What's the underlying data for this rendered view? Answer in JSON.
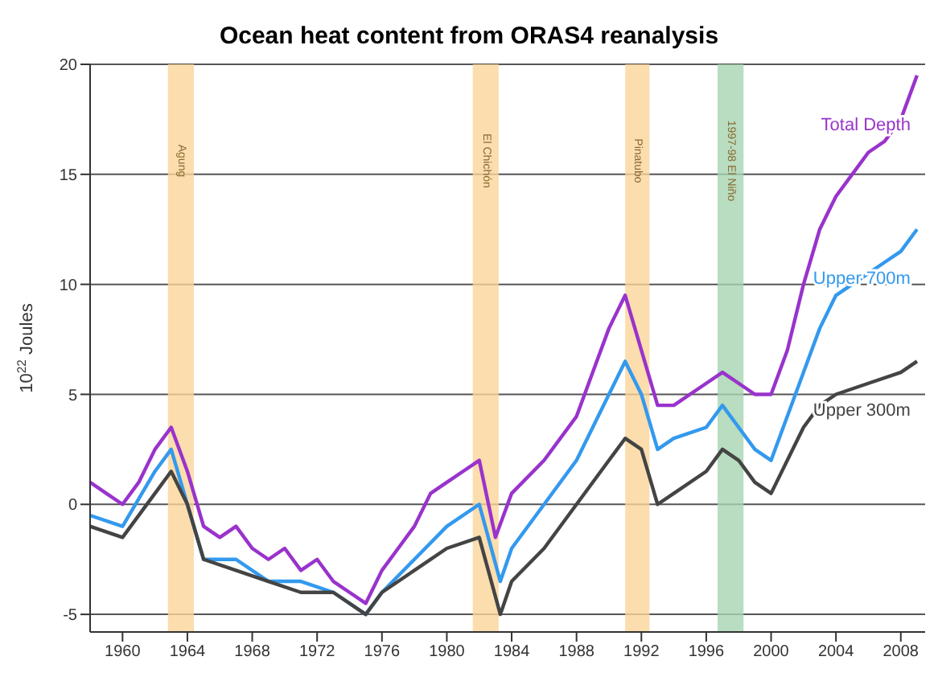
{
  "chart_data": {
    "type": "line",
    "title": "Ocean heat content from ORAS4 reanalysis",
    "ylabel": "10$^{22}$ Joules",
    "xlim": [
      1958,
      2009.5
    ],
    "xticks": [
      1960,
      1964,
      1968,
      1972,
      1976,
      1980,
      1984,
      1988,
      1992,
      1996,
      2000,
      2004,
      2008
    ],
    "ylim": [
      -5.8,
      20
    ],
    "yticks": [
      -5,
      0,
      5,
      10,
      15,
      20
    ],
    "grid": "y",
    "legend": false,
    "marker": "none",
    "line_style": "solid",
    "series": [
      {
        "name": "Total Depth",
        "color": "#9933cc",
        "x": [
          1958,
          1959,
          1960,
          1961,
          1962,
          1963,
          1964,
          1965,
          1966,
          1967,
          1968,
          1969,
          1970,
          1971,
          1972,
          1973,
          1974,
          1975,
          1976,
          1977,
          1978,
          1979,
          1980,
          1981,
          1982,
          1983,
          1984,
          1986,
          1988,
          1989,
          1990,
          1991,
          1992,
          1993,
          1994,
          1996,
          1997,
          1998,
          1999,
          2000,
          2001,
          2002,
          2003,
          2004,
          2005,
          2006,
          2007,
          2008,
          2009
        ],
        "values": [
          1,
          0.5,
          0,
          1,
          2.5,
          3.5,
          1.5,
          -1,
          -1.5,
          -1,
          -2,
          -2.5,
          -2,
          -3,
          -2.5,
          -3.5,
          -4,
          -4.5,
          -3,
          -2,
          -1,
          0.5,
          1,
          1.5,
          2,
          -1.5,
          0.5,
          2,
          4,
          6,
          8,
          9.5,
          7,
          4.5,
          4.5,
          5.5,
          6,
          5.5,
          5,
          5,
          7,
          10,
          12.5,
          14,
          15,
          16,
          16.5,
          17.5,
          19.5
        ]
      },
      {
        "name": "Upper 700m",
        "color": "#3399ee",
        "x": [
          1958,
          1960,
          1962,
          1963,
          1964,
          1965,
          1967,
          1969,
          1971,
          1973,
          1975,
          1976,
          1978,
          1980,
          1982,
          1983.3,
          1984,
          1986,
          1988,
          1990,
          1991,
          1992,
          1993,
          1994,
          1996,
          1997,
          1998,
          1999,
          2000,
          2001,
          2002,
          2003,
          2004,
          2005,
          2006,
          2007,
          2008,
          2009
        ],
        "values": [
          -0.5,
          -1,
          1.5,
          2.5,
          0,
          -2.5,
          -2.5,
          -3.5,
          -3.5,
          -4,
          -5,
          -4,
          -2.5,
          -1,
          0,
          -3.5,
          -2,
          0,
          2,
          5,
          6.5,
          5,
          2.5,
          3,
          3.5,
          4.5,
          3.5,
          2.5,
          2,
          4,
          6,
          8,
          9.5,
          10,
          10.5,
          11,
          11.5,
          12.5
        ]
      },
      {
        "name": "Upper 300m",
        "color": "#444444",
        "x": [
          1958,
          1960,
          1962,
          1963,
          1964,
          1965,
          1967,
          1969,
          1971,
          1973,
          1975,
          1976,
          1978,
          1980,
          1982,
          1983.3,
          1984,
          1986,
          1988,
          1990,
          1991,
          1992,
          1993,
          1994,
          1996,
          1997,
          1998,
          1999,
          2000,
          2001,
          2002,
          2003,
          2004,
          2006,
          2008,
          2009
        ],
        "values": [
          -1,
          -1.5,
          0.5,
          1.5,
          0,
          -2.5,
          -3,
          -3.5,
          -4,
          -4,
          -5,
          -4,
          -3,
          -2,
          -1.5,
          -5,
          -3.5,
          -2,
          0,
          2,
          3,
          2.5,
          0,
          0.5,
          1.5,
          2.5,
          2,
          1,
          0.5,
          2,
          3.5,
          4.5,
          5,
          5.5,
          6,
          6.5
        ]
      }
    ],
    "bands": [
      {
        "axis": "x",
        "from": 1962.8,
        "to": 1964.4,
        "label": "Agung",
        "color": "#fbd49a"
      },
      {
        "axis": "x",
        "from": 1981.6,
        "to": 1983.2,
        "label": "El Chichón",
        "color": "#fbd49a"
      },
      {
        "axis": "x",
        "from": 1991,
        "to": 1992.5,
        "label": "Pinatubo",
        "color": "#fbd49a"
      },
      {
        "axis": "x",
        "from": 1996.7,
        "to": 1998.3,
        "label": "1997-98 El Niño",
        "color": "#a6d4b0"
      }
    ]
  }
}
